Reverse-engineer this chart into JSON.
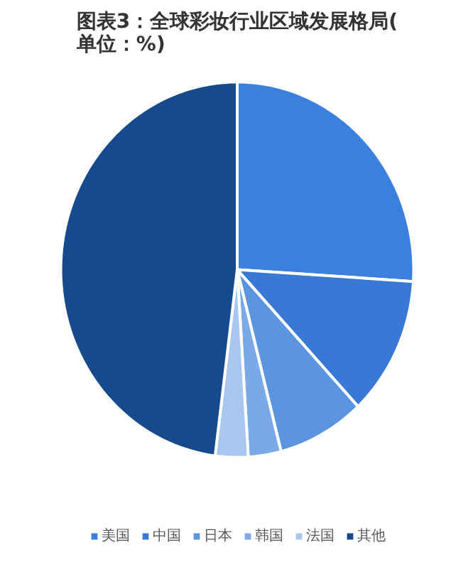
{
  "chart_data": {
    "type": "pie",
    "title": "图表3：全球彩妆行业区域发展格局(单位：%)",
    "categories": [
      "美国",
      "中国",
      "日本",
      "韩国",
      "法国",
      "其他"
    ],
    "values": [
      26,
      12,
      8,
      3,
      3,
      48
    ],
    "colors": [
      "#3b80dc",
      "#3a78d6",
      "#5b95e0",
      "#7ba9e8",
      "#a9c6ee",
      "#174a8c"
    ],
    "legend": "bottom"
  }
}
